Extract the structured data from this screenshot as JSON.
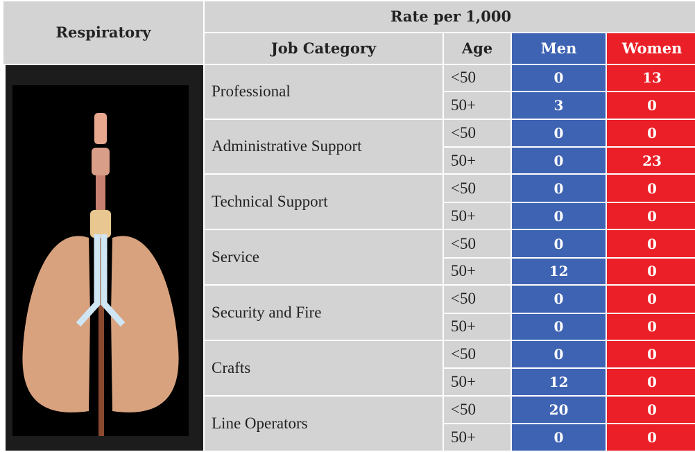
{
  "header": {
    "title": "Respiratory",
    "rate": "Rate per 1,000",
    "columns": [
      "Job Category",
      "Age",
      "Men",
      "Women"
    ]
  },
  "table": {
    "rows": [
      {
        "category": "Professional",
        "ages": [
          {
            "age": "<50",
            "men": 0,
            "women": 13
          },
          {
            "age": "50+",
            "men": 3,
            "women": 0
          }
        ]
      },
      {
        "category": "Administrative Support",
        "ages": [
          {
            "age": "<50",
            "men": 0,
            "women": 0
          },
          {
            "age": "50+",
            "men": 0,
            "women": 23
          }
        ]
      },
      {
        "category": "Technical Support",
        "ages": [
          {
            "age": "<50",
            "men": 0,
            "women": 0
          },
          {
            "age": "50+",
            "men": 0,
            "women": 0
          }
        ]
      },
      {
        "category": "Service",
        "ages": [
          {
            "age": "<50",
            "men": 0,
            "women": 0
          },
          {
            "age": "50+",
            "men": 12,
            "women": 0
          }
        ]
      },
      {
        "category": "Security and Fire",
        "ages": [
          {
            "age": "<50",
            "men": 0,
            "women": 0
          },
          {
            "age": "50+",
            "men": 0,
            "women": 0
          }
        ]
      },
      {
        "category": "Crafts",
        "ages": [
          {
            "age": "<50",
            "men": 0,
            "women": 0
          },
          {
            "age": "50+",
            "men": 12,
            "women": 0
          }
        ]
      },
      {
        "category": "Line Operators",
        "ages": [
          {
            "age": "<50",
            "men": 20,
            "women": 0
          },
          {
            "age": "50+",
            "men": 0,
            "women": 0
          }
        ]
      }
    ]
  }
}
